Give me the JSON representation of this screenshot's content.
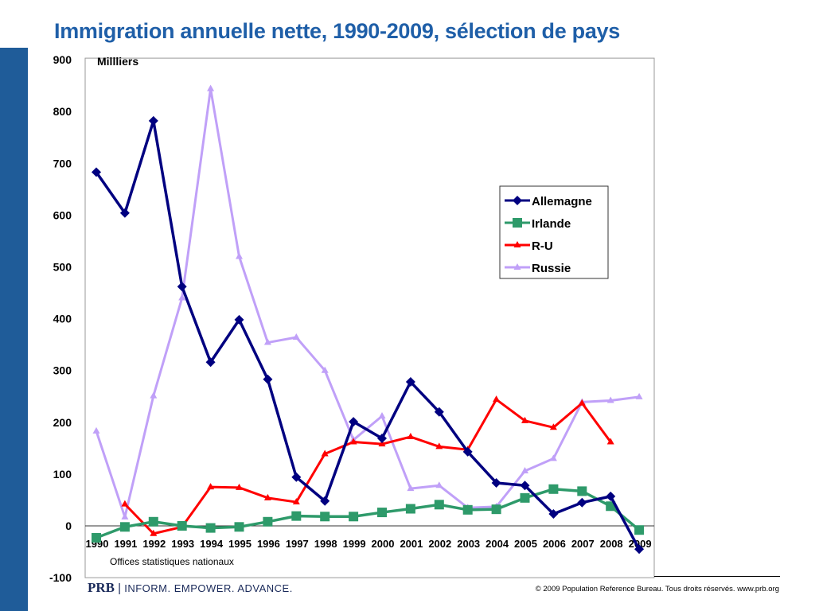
{
  "title": "Immigration annuelle nette, 1990-2009, sélection de pays",
  "source": "Offices statistiques nationaux",
  "footer": {
    "logo": "PRB",
    "tagline": "INFORM. EMPOWER. ADVANCE.",
    "copyright": "© 2009 Population Reference Bureau. Tous droits réservés. www.prb.org"
  },
  "chart_data": {
    "type": "line",
    "title": "Immigration annuelle nette, 1990-2009, sélection de pays",
    "ylabel": "Millliers",
    "xlabel": "",
    "ylim": [
      -100,
      900
    ],
    "yticks": [
      -100,
      0,
      100,
      200,
      300,
      400,
      500,
      600,
      700,
      800,
      900
    ],
    "x": [
      "1990",
      "1991",
      "1992",
      "1993",
      "1994",
      "1995",
      "1996",
      "1997",
      "1998",
      "1999",
      "2000",
      "2001",
      "2002",
      "2003",
      "2004",
      "2005",
      "2006",
      "2007",
      "2008",
      "2009"
    ],
    "legend_position": "right",
    "series": [
      {
        "name": "Allemagne",
        "color": "#000080",
        "marker": "diamond",
        "values": [
          683,
          604,
          782,
          462,
          316,
          398,
          283,
          94,
          48,
          201,
          169,
          278,
          220,
          143,
          83,
          78,
          23,
          45,
          57,
          -45
        ]
      },
      {
        "name": "Irlande",
        "color": "#2e9a6a",
        "marker": "square",
        "values": [
          -23,
          -2,
          8,
          0,
          -4,
          -2,
          8,
          19,
          18,
          18,
          26,
          33,
          41,
          31,
          32,
          54,
          71,
          67,
          38,
          -8
        ]
      },
      {
        "name": "R-U",
        "color": "#ff0000",
        "marker": "triangle",
        "values": [
          null,
          42,
          -15,
          -2,
          75,
          74,
          54,
          46,
          139,
          162,
          158,
          172,
          153,
          147,
          244,
          203,
          190,
          237,
          162,
          null
        ]
      },
      {
        "name": "Russie",
        "color": "#c0a0f8",
        "marker": "triangle",
        "values": [
          183,
          17,
          251,
          440,
          844,
          520,
          354,
          364,
          300,
          166,
          212,
          72,
          78,
          35,
          37,
          106,
          130,
          239,
          242,
          249
        ]
      }
    ]
  }
}
